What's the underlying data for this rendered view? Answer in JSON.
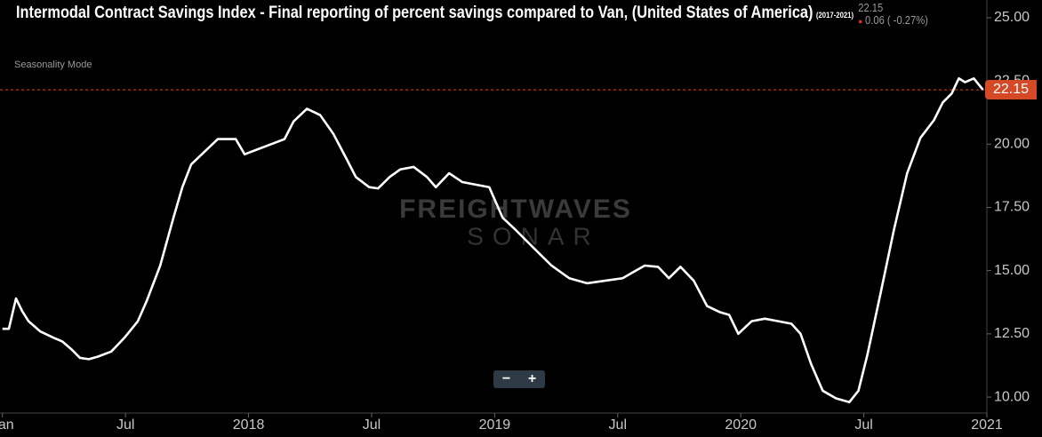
{
  "chart_data": {
    "type": "line",
    "title": "Intermodal Contract Savings Index - Final reporting of percent savings compared to Van, (United States of America)",
    "subtitle": "(2017-2021)",
    "current_value": 22.15,
    "change": "0.06 ( -0.27%)",
    "mode_label": "Seasonality Mode",
    "watermark": [
      "FREIGHTWAVES",
      "SONAR"
    ],
    "zoom_buttons": [
      "−",
      "+"
    ],
    "color": "#ffffff",
    "reference_color": "#d44a26",
    "xlim": [
      2016.99,
      2021.0
    ],
    "xticks": [
      {
        "value": 2017,
        "label": "Jan"
      },
      {
        "value": 2017.5,
        "label": "Jul"
      },
      {
        "value": 2018,
        "label": "2018"
      },
      {
        "value": 2018.5,
        "label": "Jul"
      },
      {
        "value": 2019,
        "label": "2019"
      },
      {
        "value": 2019.5,
        "label": "Jul"
      },
      {
        "value": 2020,
        "label": "2020"
      },
      {
        "value": 2020.5,
        "label": "Jul"
      },
      {
        "value": 2021,
        "label": "2021"
      }
    ],
    "ylim": [
      9.37,
      25.7
    ],
    "yticks": [
      {
        "value": 10,
        "label": "10.00"
      },
      {
        "value": 12.5,
        "label": "12.50"
      },
      {
        "value": 15,
        "label": "15.00"
      },
      {
        "value": 17.5,
        "label": "17.50"
      },
      {
        "value": 20,
        "label": "20.00"
      },
      {
        "value": 22.5,
        "label": "22.50"
      },
      {
        "value": 25,
        "label": "25.00"
      }
    ],
    "grid": false,
    "x": [
      2017.0,
      2017.026,
      2017.055,
      2017.08,
      2017.106,
      2017.153,
      2017.207,
      2017.243,
      2017.279,
      2017.315,
      2017.351,
      2017.388,
      2017.442,
      2017.496,
      2017.55,
      2017.586,
      2017.641,
      2017.695,
      2017.731,
      2017.767,
      2017.821,
      2017.875,
      2017.948,
      2017.984,
      2018.038,
      2018.092,
      2018.146,
      2018.183,
      2018.237,
      2018.291,
      2018.345,
      2018.399,
      2018.436,
      2018.49,
      2018.526,
      2018.573,
      2018.616,
      2018.671,
      2018.725,
      2018.761,
      2018.815,
      2018.869,
      2018.923,
      2018.978,
      2019.032,
      2019.086,
      2019.158,
      2019.231,
      2019.303,
      2019.375,
      2019.448,
      2019.52,
      2019.574,
      2019.61,
      2019.664,
      2019.708,
      2019.755,
      2019.809,
      2019.863,
      2019.917,
      2019.953,
      2019.99,
      2020.044,
      2020.098,
      2020.152,
      2020.206,
      2020.243,
      2020.286,
      2020.333,
      2020.387,
      2020.441,
      2020.478,
      2020.514,
      2020.568,
      2020.622,
      2020.676,
      2020.73,
      2020.785,
      2020.821,
      2020.857,
      2020.886,
      2020.911,
      2020.947,
      2020.984
    ],
    "values": [
      12.7,
      12.7,
      13.9,
      13.4,
      13.0,
      12.6,
      12.35,
      12.2,
      11.9,
      11.55,
      11.5,
      11.6,
      11.8,
      12.35,
      13.0,
      13.8,
      15.2,
      17.1,
      18.3,
      19.2,
      19.7,
      20.2,
      20.2,
      19.6,
      19.8,
      20.0,
      20.2,
      20.9,
      21.4,
      21.15,
      20.4,
      19.4,
      18.7,
      18.3,
      18.25,
      18.7,
      19.0,
      19.1,
      18.7,
      18.3,
      18.85,
      18.5,
      18.4,
      18.3,
      17.1,
      16.6,
      15.9,
      15.2,
      14.7,
      14.5,
      14.6,
      14.7,
      15.0,
      15.2,
      15.15,
      14.7,
      15.15,
      14.6,
      13.6,
      13.35,
      13.25,
      12.5,
      13.0,
      13.1,
      13.0,
      12.9,
      12.5,
      11.3,
      10.25,
      9.95,
      9.8,
      10.25,
      11.65,
      14.1,
      16.6,
      18.85,
      20.25,
      20.95,
      21.65,
      22.0,
      22.6,
      22.45,
      22.6,
      22.15
    ]
  }
}
